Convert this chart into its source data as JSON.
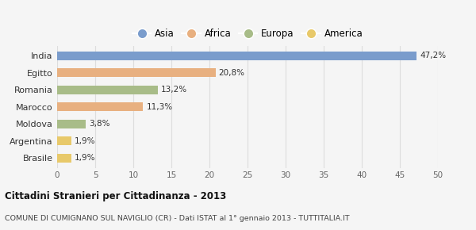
{
  "categories": [
    "Brasile",
    "Argentina",
    "Moldova",
    "Marocco",
    "Romania",
    "Egitto",
    "India"
  ],
  "values": [
    1.9,
    1.9,
    3.8,
    11.3,
    13.2,
    20.8,
    47.2
  ],
  "labels": [
    "1,9%",
    "1,9%",
    "3,8%",
    "11,3%",
    "13,2%",
    "20,8%",
    "47,2%"
  ],
  "colors": [
    "#e8c96a",
    "#e8c96a",
    "#a8bc88",
    "#e8b080",
    "#a8bc88",
    "#e8b080",
    "#7a9ccc"
  ],
  "legend_items": [
    {
      "label": "Asia",
      "color": "#7a9ccc"
    },
    {
      "label": "Africa",
      "color": "#e8b080"
    },
    {
      "label": "Europa",
      "color": "#a8bc88"
    },
    {
      "label": "America",
      "color": "#e8c96a"
    }
  ],
  "xlim": [
    0,
    50
  ],
  "xticks": [
    0,
    5,
    10,
    15,
    20,
    25,
    30,
    35,
    40,
    45,
    50
  ],
  "title": "Cittadini Stranieri per Cittadinanza - 2013",
  "subtitle": "COMUNE DI CUMIGNANO SUL NAVIGLIO (CR) - Dati ISTAT al 1° gennaio 2013 - TUTTITALIA.IT",
  "bg_color": "#f5f5f5",
  "grid_color": "#dddddd",
  "bar_height": 0.5
}
